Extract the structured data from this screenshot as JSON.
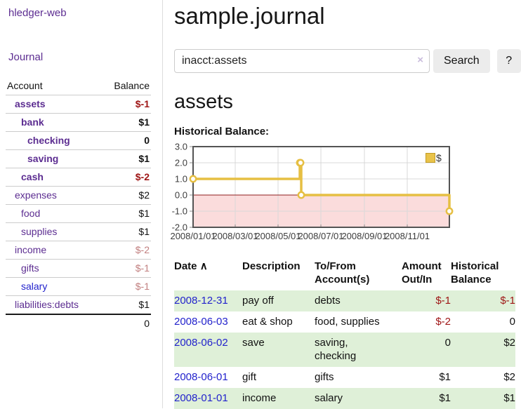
{
  "app": {
    "title": "hledger-web",
    "nav_journal": "Journal"
  },
  "sidebar": {
    "table_headers": {
      "account": "Account",
      "balance": "Balance"
    },
    "accounts": [
      {
        "name": "assets",
        "indent": 1,
        "bold": true,
        "balance": "$-1",
        "balance_class": "neg-strong"
      },
      {
        "name": "bank",
        "indent": 2,
        "bold": true,
        "balance": "$1",
        "balance_class": ""
      },
      {
        "name": "checking",
        "indent": 3,
        "bold": true,
        "balance": "0",
        "balance_class": ""
      },
      {
        "name": "saving",
        "indent": 3,
        "bold": true,
        "balance": "$1",
        "balance_class": ""
      },
      {
        "name": "cash",
        "indent": 2,
        "bold": true,
        "balance": "$-2",
        "balance_class": "neg-strong"
      },
      {
        "name": "expenses",
        "indent": 1,
        "bold": false,
        "balance": "$2",
        "balance_class": ""
      },
      {
        "name": "food",
        "indent": 2,
        "bold": false,
        "balance": "$1",
        "balance_class": ""
      },
      {
        "name": "supplies",
        "indent": 2,
        "bold": false,
        "balance": "$1",
        "balance_class": ""
      },
      {
        "name": "income",
        "indent": 1,
        "bold": false,
        "balance": "$-2",
        "balance_class": "neg-soft"
      },
      {
        "name": "gifts",
        "indent": 2,
        "bold": false,
        "balance": "$-1",
        "balance_class": "neg-soft"
      },
      {
        "name": "salary",
        "indent": 2,
        "bold": false,
        "link": "blue",
        "balance": "$-1",
        "balance_class": "neg-soft"
      },
      {
        "name": "liabilities:debts",
        "indent": 1,
        "bold": false,
        "balance": "$1",
        "balance_class": ""
      }
    ],
    "total": "0"
  },
  "header": {
    "title": "sample.journal"
  },
  "search": {
    "value": "inacct:assets",
    "clear_icon": "×",
    "button": "Search",
    "help": "?"
  },
  "account_page": {
    "heading": "assets",
    "chart_label": "Historical Balance:"
  },
  "chart_data": {
    "type": "line",
    "title": "Historical Balance",
    "step": true,
    "legend": "$",
    "x_range": [
      "2008-01-01",
      "2008-12-31"
    ],
    "y_range": [
      -2,
      3
    ],
    "x_ticks": [
      "2008/01/01",
      "2008/03/01",
      "2008/05/01",
      "2008/07/01",
      "2008/09/01",
      "2008/11/01"
    ],
    "y_ticks": [
      "3.0",
      "2.0",
      "1.0",
      "0.0",
      "-1.0",
      "-2.0"
    ],
    "negative_fill": "#fbdcdc",
    "zero_line_color": "#8f1d1d",
    "grid": true,
    "legend_position": "top-right",
    "series": [
      {
        "name": "$",
        "color": "#e6bf43",
        "points": [
          [
            "2008-01-01",
            1
          ],
          [
            "2008-06-01",
            2
          ],
          [
            "2008-06-02",
            2
          ],
          [
            "2008-06-03",
            0
          ],
          [
            "2008-12-31",
            -1
          ]
        ]
      }
    ]
  },
  "register_table": {
    "headers": {
      "date": "Date",
      "sort_icon": "∧",
      "description": "Description",
      "accounts": "To/From\nAccount(s)",
      "amount": "Amount\nOut/In",
      "balance": "Historical\nBalance"
    },
    "rows": [
      {
        "date": "2008-12-31",
        "description": "pay off",
        "accounts": "debts",
        "amount": "$-1",
        "balance": "$-1"
      },
      {
        "date": "2008-06-03",
        "description": "eat & shop",
        "accounts": "food, supplies",
        "amount": "$-2",
        "balance": "0"
      },
      {
        "date": "2008-06-02",
        "description": "save",
        "accounts": "saving,\nchecking",
        "amount": "0",
        "balance": "$2"
      },
      {
        "date": "2008-06-01",
        "description": "gift",
        "accounts": "gifts",
        "amount": "$1",
        "balance": "$2"
      },
      {
        "date": "2008-01-01",
        "description": "income",
        "accounts": "salary",
        "amount": "$1",
        "balance": "$1"
      }
    ]
  }
}
